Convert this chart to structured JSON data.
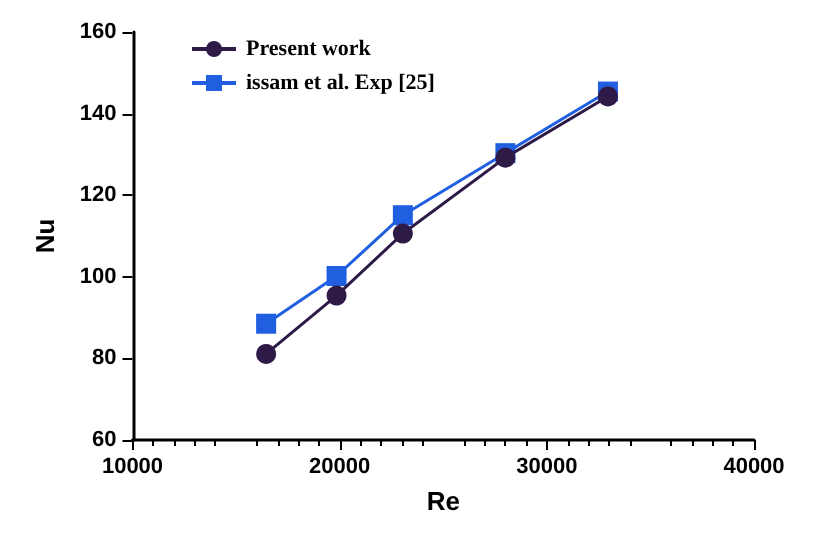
{
  "chart_data": {
    "type": "line",
    "xlabel": "Re",
    "ylabel": "Nu",
    "xlim": [
      10000,
      40000
    ],
    "xticks": [
      10000,
      20000,
      30000,
      40000
    ],
    "ylim": [
      60,
      160
    ],
    "yticks": [
      60,
      80,
      100,
      120,
      140,
      160
    ],
    "grid": false,
    "legend": "top left",
    "series": [
      {
        "name": "Present work",
        "color": "#2e1a47",
        "marker": "circle",
        "x": [
          16450,
          19850,
          23050,
          28000,
          32950
        ],
        "values": [
          81.1,
          95.4,
          110.6,
          129.2,
          144.2
        ]
      },
      {
        "name": "issam et al. Exp [25]",
        "color": "#1f5fe0",
        "marker": "square",
        "x": [
          16450,
          19850,
          23050,
          28000,
          32950
        ],
        "values": [
          88.5,
          100.2,
          115.1,
          130.3,
          145.4
        ]
      }
    ]
  }
}
